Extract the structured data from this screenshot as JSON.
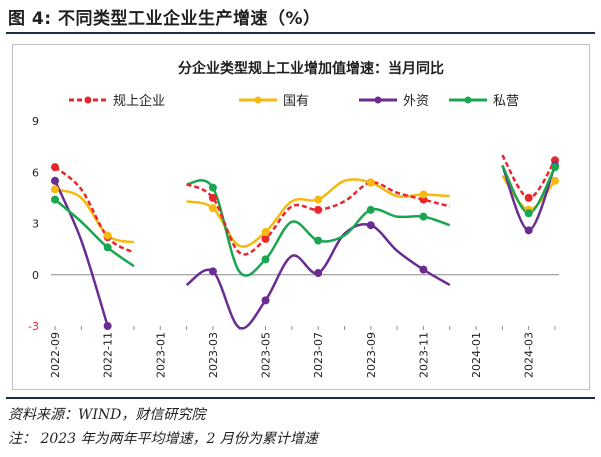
{
  "figure": {
    "title": "图 4:  不同类型工业企业生产增速（%）",
    "source": "资料来源：WIND，财信研究院",
    "note": "注：  2023 年为两年平均增速，2 月份为累计增速"
  },
  "chart_data": {
    "type": "line",
    "title": "分企业类型规上工业增加值增速：当月同比",
    "x": [
      "2022-09",
      "2022-10",
      "2022-11",
      "2022-12",
      "2023-01",
      "2023-02",
      "2023-03",
      "2023-04",
      "2023-05",
      "2023-06",
      "2023-07",
      "2023-08",
      "2023-09",
      "2023-10",
      "2023-11",
      "2023-12",
      "2024-01",
      "2024-02",
      "2024-03",
      "2024-04"
    ],
    "x_tick_labels": [
      "2022-09",
      "2022-11",
      "2023-01",
      "2023-03",
      "2023-05",
      "2023-07",
      "2023-09",
      "2023-11",
      "2024-01",
      "2024-03"
    ],
    "ylim": [
      -3,
      9
    ],
    "yticks": [
      -3,
      0,
      3,
      6,
      9
    ],
    "grid": false,
    "legend_position": "top",
    "series": [
      {
        "name": "规上企业",
        "color": "#e8262d",
        "dashed": true,
        "values": [
          6.3,
          5.0,
          2.2,
          1.3,
          null,
          5.3,
          4.5,
          1.3,
          2.1,
          4.0,
          3.8,
          4.3,
          5.4,
          4.8,
          4.4,
          4.0,
          null,
          7.0,
          4.5,
          6.7
        ]
      },
      {
        "name": "国有",
        "color": "#f6b912",
        "dashed": false,
        "values": [
          5.0,
          4.5,
          2.3,
          1.9,
          null,
          4.3,
          3.9,
          1.7,
          2.5,
          4.3,
          4.4,
          5.5,
          5.4,
          4.6,
          4.7,
          4.6,
          null,
          5.8,
          3.8,
          5.5
        ]
      },
      {
        "name": "外资",
        "color": "#6a2c91",
        "dashed": false,
        "values": [
          5.5,
          2.0,
          -3.0,
          null,
          null,
          -0.6,
          0.2,
          -3.1,
          -1.5,
          1.1,
          0.1,
          2.4,
          2.9,
          1.4,
          0.3,
          -0.6,
          null,
          6.4,
          2.6,
          6.4
        ]
      },
      {
        "name": "私营",
        "color": "#1aa650",
        "dashed": false,
        "values": [
          4.4,
          3.1,
          1.6,
          0.5,
          null,
          5.3,
          5.1,
          0.2,
          0.9,
          3.1,
          2.0,
          2.3,
          3.8,
          3.4,
          3.4,
          2.9,
          null,
          6.4,
          3.6,
          6.3
        ]
      }
    ]
  }
}
